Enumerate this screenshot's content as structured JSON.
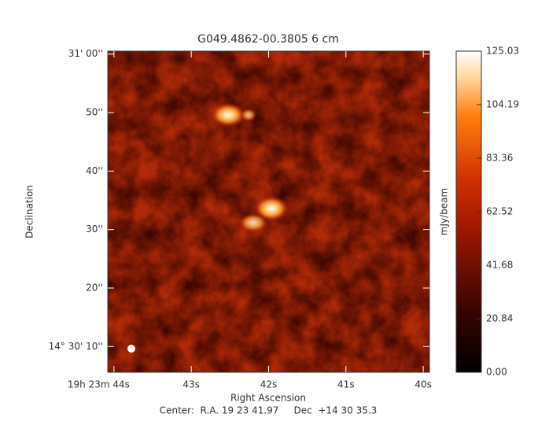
{
  "chart_data": {
    "type": "image",
    "title": "G049.4862-00.3805 6 cm",
    "xlabel": "Right Ascension",
    "ylabel": "Declination",
    "footer": "Center:  R.A. 19 23 41.97     Dec  +14 30 35.3",
    "xlim": [
      44.08,
      39.92
    ],
    "xticks": [
      {
        "value": 44,
        "label": "19h 23m 44s"
      },
      {
        "value": 43,
        "label": "43s"
      },
      {
        "value": 42,
        "label": "42s"
      },
      {
        "value": 41,
        "label": "41s"
      },
      {
        "value": 40,
        "label": "40s"
      }
    ],
    "ylim": [
      5.6,
      60.5
    ],
    "yticks": [
      {
        "value": 10,
        "label": "14° 30' 10''"
      },
      {
        "value": 20,
        "label": "20''"
      },
      {
        "value": 30,
        "label": "30''"
      },
      {
        "value": 40,
        "label": "40''"
      },
      {
        "value": 50,
        "label": "50''"
      },
      {
        "value": 60,
        "label": "31' 00''"
      }
    ],
    "colorbar": {
      "label": "mJy/beam",
      "lim": [
        0,
        125.03
      ],
      "ticks": [
        {
          "value": 0,
          "label": "0.00"
        },
        20.84,
        41.68,
        62.52,
        83.36,
        104.19,
        125.03
      ]
    }
  }
}
